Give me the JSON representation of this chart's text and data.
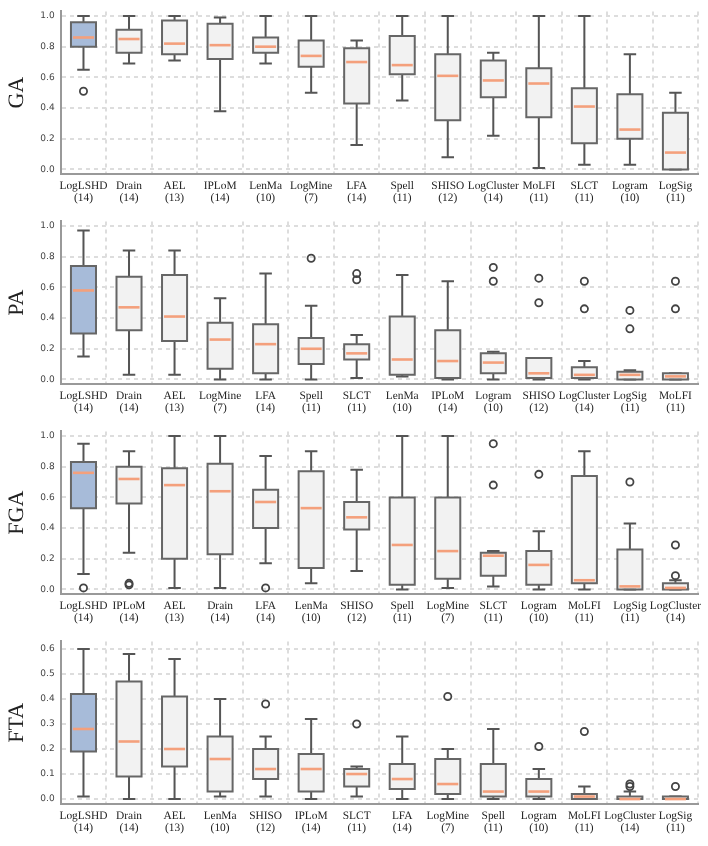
{
  "chart_data": [
    {
      "type": "box",
      "ylabel": "GA",
      "grid": true,
      "ylim": [
        -0.03,
        1.03
      ],
      "yticks": [
        {
          "value": 0,
          "label": "0.0"
        },
        {
          "value": 0.2,
          "label": "0.2"
        },
        {
          "value": 0.4,
          "label": "0.4"
        },
        {
          "value": 0.6,
          "label": "0.6"
        },
        {
          "value": 0.8,
          "label": "0.8"
        },
        {
          "value": 1,
          "label": "1.0"
        }
      ],
      "categories": [
        "LogLSHD\n(14)",
        "Drain\n(14)",
        "AEL\n(13)",
        "IPLoM\n(14)",
        "LenMa\n(10)",
        "LogMine\n(7)",
        "LFA\n(14)",
        "Spell\n(11)",
        "SHISO\n(12)",
        "LogCluster\n(14)",
        "MoLFI\n(11)",
        "SLCT\n(11)",
        "Logram\n(10)",
        "LogSig\n(11)"
      ],
      "colors": [
        "#a7bbd9",
        "#f2f2f2",
        "#f2f2f2",
        "#f2f2f2",
        "#f2f2f2",
        "#f2f2f2",
        "#f2f2f2",
        "#f2f2f2",
        "#f2f2f2",
        "#f2f2f2",
        "#f2f2f2",
        "#f2f2f2",
        "#f2f2f2",
        "#f2f2f2"
      ],
      "boxes": [
        {
          "low": 0.65,
          "q1": 0.8,
          "median": 0.86,
          "q3": 0.96,
          "high": 1.0,
          "outliers": [
            0.51
          ]
        },
        {
          "low": 0.69,
          "q1": 0.76,
          "median": 0.85,
          "q3": 0.91,
          "high": 1.0
        },
        {
          "low": 0.71,
          "q1": 0.75,
          "median": 0.82,
          "q3": 0.97,
          "high": 1.0
        },
        {
          "low": 0.38,
          "q1": 0.72,
          "median": 0.81,
          "q3": 0.95,
          "high": 0.99
        },
        {
          "low": 0.69,
          "q1": 0.76,
          "median": 0.8,
          "q3": 0.86,
          "high": 1.0
        },
        {
          "low": 0.5,
          "q1": 0.67,
          "median": 0.74,
          "q3": 0.84,
          "high": 1.0
        },
        {
          "low": 0.16,
          "q1": 0.43,
          "median": 0.7,
          "q3": 0.79,
          "high": 0.84
        },
        {
          "low": 0.45,
          "q1": 0.62,
          "median": 0.68,
          "q3": 0.87,
          "high": 1.0
        },
        {
          "low": 0.08,
          "q1": 0.32,
          "median": 0.61,
          "q3": 0.75,
          "high": 1.0
        },
        {
          "low": 0.22,
          "q1": 0.47,
          "median": 0.58,
          "q3": 0.71,
          "high": 0.76
        },
        {
          "low": 0.01,
          "q1": 0.34,
          "median": 0.56,
          "q3": 0.66,
          "high": 1.0
        },
        {
          "low": 0.03,
          "q1": 0.17,
          "median": 0.41,
          "q3": 0.53,
          "high": 1.0
        },
        {
          "low": 0.03,
          "q1": 0.2,
          "median": 0.26,
          "q3": 0.49,
          "high": 0.75
        },
        {
          "low": 0.0,
          "q1": 0.0,
          "median": 0.11,
          "q3": 0.37,
          "high": 0.5
        }
      ]
    },
    {
      "type": "box",
      "ylabel": "PA",
      "grid": true,
      "ylim": [
        -0.03,
        1.03
      ],
      "yticks": [
        {
          "value": 0,
          "label": "0.0"
        },
        {
          "value": 0.2,
          "label": "0.2"
        },
        {
          "value": 0.4,
          "label": "0.4"
        },
        {
          "value": 0.6,
          "label": "0.6"
        },
        {
          "value": 0.8,
          "label": "0.8"
        },
        {
          "value": 1,
          "label": "1.0"
        }
      ],
      "categories": [
        "LogLSHD\n(14)",
        "Drain\n(14)",
        "AEL\n(13)",
        "LogMine\n(7)",
        "LFA\n(14)",
        "Spell\n(11)",
        "SLCT\n(11)",
        "LenMa\n(10)",
        "IPLoM\n(14)",
        "Logram\n(10)",
        "SHISO\n(12)",
        "LogCluster\n(14)",
        "LogSig\n(11)",
        "MoLFI\n(11)"
      ],
      "colors": [
        "#a7bbd9",
        "#f2f2f2",
        "#f2f2f2",
        "#f2f2f2",
        "#f2f2f2",
        "#f2f2f2",
        "#f2f2f2",
        "#f2f2f2",
        "#f2f2f2",
        "#f2f2f2",
        "#f2f2f2",
        "#f2f2f2",
        "#f2f2f2",
        "#f2f2f2"
      ],
      "boxes": [
        {
          "low": 0.15,
          "q1": 0.3,
          "median": 0.58,
          "q3": 0.74,
          "high": 0.97
        },
        {
          "low": 0.03,
          "q1": 0.32,
          "median": 0.47,
          "q3": 0.67,
          "high": 0.84
        },
        {
          "low": 0.03,
          "q1": 0.25,
          "median": 0.41,
          "q3": 0.68,
          "high": 0.84
        },
        {
          "low": 0.0,
          "q1": 0.07,
          "median": 0.26,
          "q3": 0.37,
          "high": 0.53
        },
        {
          "low": 0.0,
          "q1": 0.04,
          "median": 0.23,
          "q3": 0.36,
          "high": 0.69
        },
        {
          "low": 0.0,
          "q1": 0.1,
          "median": 0.2,
          "q3": 0.27,
          "high": 0.48,
          "outliers": [
            0.79
          ]
        },
        {
          "low": 0.01,
          "q1": 0.13,
          "median": 0.17,
          "q3": 0.23,
          "high": 0.29,
          "outliers": [
            0.65,
            0.69
          ]
        },
        {
          "low": 0.02,
          "q1": 0.03,
          "median": 0.13,
          "q3": 0.41,
          "high": 0.68
        },
        {
          "low": 0.0,
          "q1": 0.01,
          "median": 0.12,
          "q3": 0.32,
          "high": 0.64
        },
        {
          "low": 0.0,
          "q1": 0.04,
          "median": 0.11,
          "q3": 0.17,
          "high": 0.18,
          "outliers": [
            0.64,
            0.73
          ]
        },
        {
          "low": 0.0,
          "q1": 0.01,
          "median": 0.04,
          "q3": 0.14,
          "high": 0.14,
          "outliers": [
            0.5,
            0.66
          ]
        },
        {
          "low": 0.0,
          "q1": 0.01,
          "median": 0.03,
          "q3": 0.08,
          "high": 0.12,
          "outliers": [
            0.46,
            0.64
          ]
        },
        {
          "low": 0.0,
          "q1": 0.0,
          "median": 0.03,
          "q3": 0.05,
          "high": 0.06,
          "outliers": [
            0.33,
            0.45
          ]
        },
        {
          "low": 0.0,
          "q1": 0.0,
          "median": 0.02,
          "q3": 0.04,
          "high": 0.04,
          "outliers": [
            0.46,
            0.64
          ]
        }
      ]
    },
    {
      "type": "box",
      "ylabel": "FGA",
      "grid": true,
      "ylim": [
        -0.03,
        1.03
      ],
      "yticks": [
        {
          "value": 0,
          "label": "0.0"
        },
        {
          "value": 0.2,
          "label": "0.2"
        },
        {
          "value": 0.4,
          "label": "0.4"
        },
        {
          "value": 0.6,
          "label": "0.6"
        },
        {
          "value": 0.8,
          "label": "0.8"
        },
        {
          "value": 1,
          "label": "1.0"
        }
      ],
      "categories": [
        "LogLSHD\n(14)",
        "IPLoM\n(14)",
        "AEL\n(13)",
        "Drain\n(14)",
        "LFA\n(14)",
        "LenMa\n(10)",
        "SHISO\n(12)",
        "Spell\n(11)",
        "LogMine\n(7)",
        "SLCT\n(11)",
        "Logram\n(10)",
        "MoLFI\n(11)",
        "LogSig\n(11)",
        "LogCluster\n(14)"
      ],
      "colors": [
        "#a7bbd9",
        "#f2f2f2",
        "#f2f2f2",
        "#f2f2f2",
        "#f2f2f2",
        "#f2f2f2",
        "#f2f2f2",
        "#f2f2f2",
        "#f2f2f2",
        "#f2f2f2",
        "#f2f2f2",
        "#f2f2f2",
        "#f2f2f2",
        "#f2f2f2"
      ],
      "boxes": [
        {
          "low": 0.1,
          "q1": 0.53,
          "median": 0.76,
          "q3": 0.83,
          "high": 0.95,
          "outliers": [
            0.01
          ]
        },
        {
          "low": 0.24,
          "q1": 0.56,
          "median": 0.72,
          "q3": 0.8,
          "high": 0.9,
          "outliers": [
            0.03,
            0.04
          ]
        },
        {
          "low": 0.01,
          "q1": 0.2,
          "median": 0.68,
          "q3": 0.79,
          "high": 1.0
        },
        {
          "low": 0.01,
          "q1": 0.23,
          "median": 0.64,
          "q3": 0.82,
          "high": 1.0
        },
        {
          "low": 0.17,
          "q1": 0.4,
          "median": 0.57,
          "q3": 0.65,
          "high": 0.87,
          "outliers": [
            0.01
          ]
        },
        {
          "low": 0.04,
          "q1": 0.14,
          "median": 0.53,
          "q3": 0.77,
          "high": 0.9
        },
        {
          "low": 0.12,
          "q1": 0.39,
          "median": 0.47,
          "q3": 0.57,
          "high": 0.78
        },
        {
          "low": 0.0,
          "q1": 0.03,
          "median": 0.29,
          "q3": 0.6,
          "high": 1.0
        },
        {
          "low": 0.01,
          "q1": 0.07,
          "median": 0.25,
          "q3": 0.6,
          "high": 1.0
        },
        {
          "low": 0.02,
          "q1": 0.09,
          "median": 0.22,
          "q3": 0.24,
          "high": 0.25,
          "outliers": [
            0.68,
            0.95
          ]
        },
        {
          "low": 0.0,
          "q1": 0.03,
          "median": 0.16,
          "q3": 0.25,
          "high": 0.38,
          "outliers": [
            0.75
          ]
        },
        {
          "low": 0.0,
          "q1": 0.04,
          "median": 0.06,
          "q3": 0.74,
          "high": 0.9
        },
        {
          "low": 0.0,
          "q1": 0.0,
          "median": 0.02,
          "q3": 0.26,
          "high": 0.43,
          "outliers": [
            0.7
          ]
        },
        {
          "low": 0.0,
          "q1": 0.0,
          "median": 0.01,
          "q3": 0.04,
          "high": 0.06,
          "outliers": [
            0.09,
            0.29
          ]
        }
      ]
    },
    {
      "type": "box",
      "ylabel": "FTA",
      "grid": true,
      "ylim": [
        -0.02,
        0.63
      ],
      "yticks": [
        {
          "value": 0,
          "label": "0.0"
        },
        {
          "value": 0.1,
          "label": "0.1"
        },
        {
          "value": 0.2,
          "label": "0.2"
        },
        {
          "value": 0.3,
          "label": "0.3"
        },
        {
          "value": 0.4,
          "label": "0.4"
        },
        {
          "value": 0.5,
          "label": "0.5"
        },
        {
          "value": 0.6,
          "label": "0.6"
        }
      ],
      "categories": [
        "LogLSHD\n(14)",
        "Drain\n(14)",
        "AEL\n(13)",
        "LenMa\n(10)",
        "SHISO\n(12)",
        "IPLoM\n(14)",
        "SLCT\n(11)",
        "LFA\n(14)",
        "LogMine\n(7)",
        "Spell\n(11)",
        "Logram\n(10)",
        "MoLFI\n(11)",
        "LogCluster\n(14)",
        "LogSig\n(11)"
      ],
      "colors": [
        "#a7bbd9",
        "#f2f2f2",
        "#f2f2f2",
        "#f2f2f2",
        "#f2f2f2",
        "#f2f2f2",
        "#f2f2f2",
        "#f2f2f2",
        "#f2f2f2",
        "#f2f2f2",
        "#f2f2f2",
        "#f2f2f2",
        "#f2f2f2",
        "#f2f2f2"
      ],
      "boxes": [
        {
          "low": 0.01,
          "q1": 0.19,
          "median": 0.28,
          "q3": 0.42,
          "high": 0.6
        },
        {
          "low": 0.0,
          "q1": 0.09,
          "median": 0.23,
          "q3": 0.47,
          "high": 0.58
        },
        {
          "low": 0.0,
          "q1": 0.13,
          "median": 0.2,
          "q3": 0.41,
          "high": 0.56
        },
        {
          "low": 0.01,
          "q1": 0.03,
          "median": 0.16,
          "q3": 0.25,
          "high": 0.4
        },
        {
          "low": 0.01,
          "q1": 0.08,
          "median": 0.12,
          "q3": 0.2,
          "high": 0.25,
          "outliers": [
            0.38
          ]
        },
        {
          "low": 0.0,
          "q1": 0.03,
          "median": 0.12,
          "q3": 0.18,
          "high": 0.32
        },
        {
          "low": 0.01,
          "q1": 0.05,
          "median": 0.1,
          "q3": 0.12,
          "high": 0.13,
          "outliers": [
            0.3
          ]
        },
        {
          "low": 0.0,
          "q1": 0.04,
          "median": 0.08,
          "q3": 0.14,
          "high": 0.25
        },
        {
          "low": 0.0,
          "q1": 0.02,
          "median": 0.06,
          "q3": 0.16,
          "high": 0.2,
          "outliers": [
            0.41
          ]
        },
        {
          "low": 0.0,
          "q1": 0.01,
          "median": 0.03,
          "q3": 0.14,
          "high": 0.28
        },
        {
          "low": 0.0,
          "q1": 0.01,
          "median": 0.03,
          "q3": 0.08,
          "high": 0.12,
          "outliers": [
            0.21
          ]
        },
        {
          "low": 0.0,
          "q1": 0.0,
          "median": 0.01,
          "q3": 0.02,
          "high": 0.05,
          "outliers": [
            0.27
          ]
        },
        {
          "low": 0.0,
          "q1": 0.0,
          "median": 0.0,
          "q3": 0.01,
          "high": 0.03,
          "outliers": [
            0.05,
            0.06
          ]
        },
        {
          "low": 0.0,
          "q1": 0.0,
          "median": 0.0,
          "q3": 0.01,
          "high": 0.01,
          "outliers": [
            0.05
          ]
        }
      ]
    }
  ]
}
